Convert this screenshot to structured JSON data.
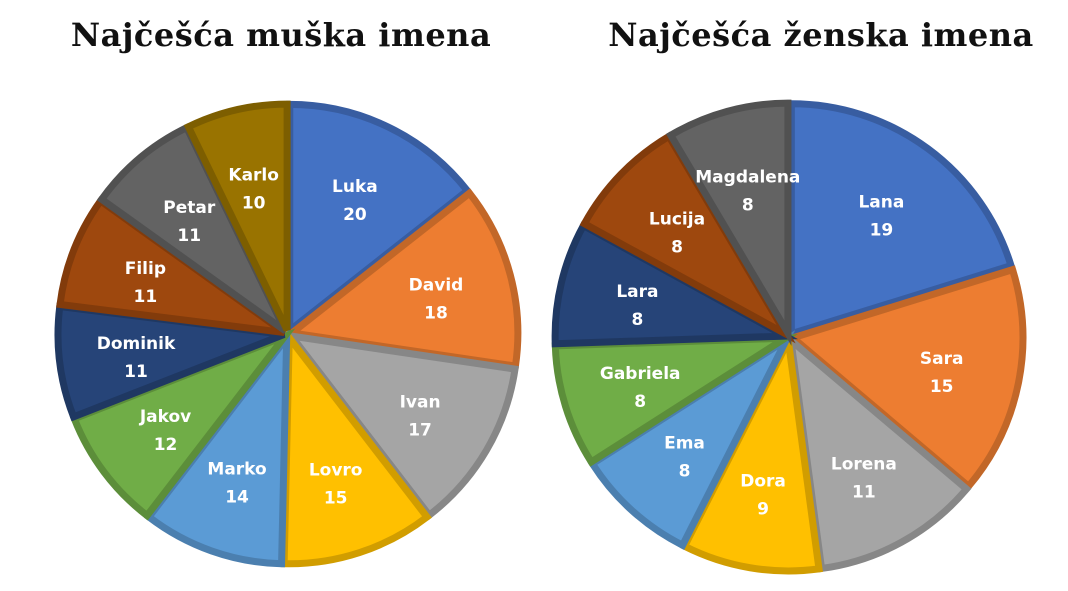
{
  "chart_data": [
    {
      "type": "pie",
      "title": "Najčešća muška imena",
      "categories": [
        "Luka",
        "David",
        "Ivan",
        "Lovro",
        "Marko",
        "Jakov",
        "Dominik",
        "Filip",
        "Petar",
        "Karlo"
      ],
      "values": [
        20,
        18,
        17,
        15,
        14,
        12,
        11,
        11,
        11,
        10
      ],
      "colors": [
        "#4472C4",
        "#ED7D31",
        "#A5A5A5",
        "#FFC000",
        "#5B9BD5",
        "#70AD47",
        "#264478",
        "#9E480E",
        "#636363",
        "#997300"
      ],
      "exploded": true
    },
    {
      "type": "pie",
      "title": "Najčešća ženska imena",
      "categories": [
        "Lana",
        "Sara",
        "Lorena",
        "Dora",
        "Ema",
        "Gabriela",
        "Lara",
        "Lucija",
        "Magdalena"
      ],
      "values": [
        19,
        15,
        11,
        9,
        8,
        8,
        8,
        8,
        8
      ],
      "colors": [
        "#4472C4",
        "#ED7D31",
        "#A5A5A5",
        "#FFC000",
        "#5B9BD5",
        "#70AD47",
        "#264478",
        "#9E480E",
        "#636363"
      ],
      "exploded": true
    }
  ]
}
